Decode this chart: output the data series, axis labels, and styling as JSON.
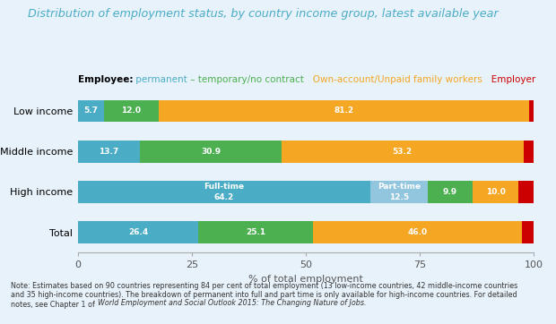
{
  "title": "Distribution of employment status, by country income group, latest available year",
  "title_color": "#4BACC6",
  "background_color": "#E8F2FA",
  "bar_height": 0.55,
  "categories": [
    "Low income",
    "Middle income",
    "High income",
    "Total"
  ],
  "segments": {
    "Low income": [
      {
        "label": "5.7",
        "value": 5.7,
        "color": "#4BACC6",
        "text_color": "white"
      },
      {
        "label": "12.0",
        "value": 12.0,
        "color": "#4CAF50",
        "text_color": "white"
      },
      {
        "label": "81.2",
        "value": 81.2,
        "color": "#F5A623",
        "text_color": "white"
      },
      {
        "label": "",
        "value": 1.1,
        "color": "#CC0000",
        "text_color": "white"
      }
    ],
    "Middle income": [
      {
        "label": "13.7",
        "value": 13.7,
        "color": "#4BACC6",
        "text_color": "white"
      },
      {
        "label": "30.9",
        "value": 30.9,
        "color": "#4CAF50",
        "text_color": "white"
      },
      {
        "label": "53.2",
        "value": 53.2,
        "color": "#F5A623",
        "text_color": "white"
      },
      {
        "label": "",
        "value": 2.2,
        "color": "#CC0000",
        "text_color": "white"
      }
    ],
    "High income": [
      {
        "label": "Full-time\n64.2",
        "value": 64.2,
        "color": "#4BACC6",
        "text_color": "white"
      },
      {
        "label": "Part-time\n12.5",
        "value": 12.5,
        "color": "#92C5DE",
        "text_color": "white"
      },
      {
        "label": "9.9",
        "value": 9.9,
        "color": "#4CAF50",
        "text_color": "white"
      },
      {
        "label": "10.0",
        "value": 10.0,
        "color": "#F5A623",
        "text_color": "white"
      },
      {
        "label": "",
        "value": 3.4,
        "color": "#CC0000",
        "text_color": "white"
      }
    ],
    "Total": [
      {
        "label": "26.4",
        "value": 26.4,
        "color": "#4BACC6",
        "text_color": "white"
      },
      {
        "label": "25.1",
        "value": 25.1,
        "color": "#4CAF50",
        "text_color": "white"
      },
      {
        "label": "46.0",
        "value": 46.0,
        "color": "#F5A623",
        "text_color": "white"
      },
      {
        "label": "",
        "value": 2.5,
        "color": "#CC0000",
        "text_color": "white"
      }
    ]
  },
  "xlabel": "% of total employment",
  "xlim": [
    0,
    100
  ],
  "xticks": [
    0,
    25,
    50,
    75,
    100
  ],
  "legend_parts": [
    {
      "text": "Employee:",
      "color": "black",
      "bold": true
    },
    {
      "text": " permanent",
      "color": "#4BACC6",
      "bold": false
    },
    {
      "text": " – temporary/no contract",
      "color": "#4CAF50",
      "bold": false
    },
    {
      "text": "   Own-account/Unpaid family workers",
      "color": "#F5A623",
      "bold": false
    },
    {
      "text": "   Employer",
      "color": "#CC0000",
      "bold": false
    }
  ],
  "note_normal": "Note: Estimates based on 90 countries representing 84 per cent of total employment (13 low-income countries, 42 middle-income countries\nand 35 high-income countries). The breakdown of permanent into full and part time is only available for high-income countries. For detailed\nnotes, see Chapter 1 of ",
  "note_italic": "World Employment and Social Outlook 2015: The Changing Nature of Jobs."
}
